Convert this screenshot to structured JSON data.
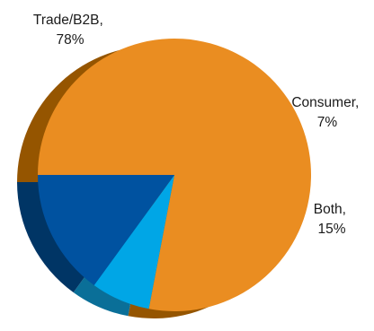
{
  "chart_data": {
    "type": "pie",
    "title": "",
    "start_angle_deg": -180,
    "direction": "clockwise",
    "three_d": true,
    "series": [
      {
        "slices": [
          {
            "label": "Trade/B2B",
            "value": 78,
            "value_label": "78%",
            "color": "#ea8d21",
            "shadow_color": "#955500"
          },
          {
            "label": "Consumer",
            "value": 7,
            "value_label": "7%",
            "color": "#00a6e6",
            "shadow_color": "#0a6f98"
          },
          {
            "label": "Both",
            "value": 15,
            "value_label": "15%",
            "color": "#0052a0",
            "shadow_color": "#003565"
          }
        ]
      }
    ],
    "legend": "none",
    "grid": false
  }
}
